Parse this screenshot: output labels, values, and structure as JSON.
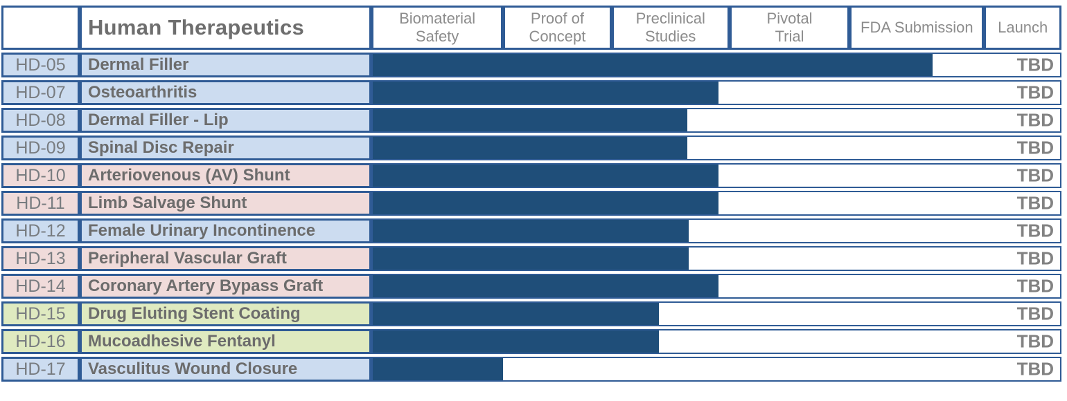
{
  "colors": {
    "bar_fill": "#1F4E79",
    "grid_border": "#2F5B95",
    "row_blue": "#CCDCF0",
    "row_pink": "#F0DBDA",
    "row_green": "#DFEAC0",
    "text_gray": "#7F7F7F"
  },
  "chart_data": {
    "type": "gantt",
    "title": "Human Therapeutics",
    "legend_position": "none",
    "grid": "header column dividers only",
    "launch_column_value_all_rows": "TBD",
    "stages": [
      {
        "label": "Biomaterial Safety",
        "lines": [
          "Biomaterial",
          "Safety"
        ],
        "width_pct": 19.1
      },
      {
        "label": "Proof of Concept",
        "lines": [
          "Proof of",
          "Concept"
        ],
        "width_pct": 15.7
      },
      {
        "label": "Preclinical Studies",
        "lines": [
          "Preclinical",
          "Studies"
        ],
        "width_pct": 17.1
      },
      {
        "label": "Pivotal Trial",
        "lines": [
          "Pivotal",
          "Trial"
        ],
        "width_pct": 17.4
      },
      {
        "label": "FDA Submission",
        "lines": [
          "FDA Submission"
        ],
        "width_pct": 19.5
      },
      {
        "label": "Launch",
        "lines": [
          "Launch"
        ],
        "width_pct": 11.2
      }
    ],
    "rows": [
      {
        "code": "HD-05",
        "name": "Dermal Filler",
        "color": "blue",
        "bar_pct": 81.5,
        "reached": "FDA Submission (~60%)",
        "launch": "TBD"
      },
      {
        "code": "HD-07",
        "name": "Osteoarthritis",
        "color": "blue",
        "bar_pct": 50.3,
        "reached": "Preclinical Studies (~90%)",
        "launch": "TBD"
      },
      {
        "code": "HD-08",
        "name": "Dermal Filler - Lip",
        "color": "blue",
        "bar_pct": 45.8,
        "reached": "Preclinical Studies (~65%)",
        "launch": "TBD"
      },
      {
        "code": "HD-09",
        "name": "Spinal Disc Repair",
        "color": "blue",
        "bar_pct": 45.8,
        "reached": "Preclinical Studies (~65%)",
        "launch": "TBD"
      },
      {
        "code": "HD-10",
        "name": "Arteriovenous (AV) Shunt",
        "color": "pink",
        "bar_pct": 50.3,
        "reached": "Preclinical Studies (~90%)",
        "launch": "TBD"
      },
      {
        "code": "HD-11",
        "name": "Limb Salvage Shunt",
        "color": "pink",
        "bar_pct": 50.3,
        "reached": "Preclinical Studies (~90%)",
        "launch": "TBD"
      },
      {
        "code": "HD-12",
        "name": "Female Urinary Incontinence",
        "color": "blue",
        "bar_pct": 46.0,
        "reached": "Preclinical Studies (~66%)",
        "launch": "TBD"
      },
      {
        "code": "HD-13",
        "name": "Peripheral Vascular Graft",
        "color": "pink",
        "bar_pct": 46.0,
        "reached": "Preclinical Studies (~66%)",
        "launch": "TBD"
      },
      {
        "code": "HD-14",
        "name": "Coronary Artery Bypass Graft",
        "color": "pink",
        "bar_pct": 50.3,
        "reached": "Preclinical Studies (~90%)",
        "launch": "TBD"
      },
      {
        "code": "HD-15",
        "name": "Drug Eluting Stent Coating",
        "color": "green",
        "bar_pct": 41.6,
        "reached": "Preclinical Studies (~40%)",
        "launch": "TBD"
      },
      {
        "code": "HD-16",
        "name": "Mucoadhesive Fentanyl",
        "color": "green",
        "bar_pct": 41.6,
        "reached": "Preclinical Studies (~40%)",
        "launch": "TBD"
      },
      {
        "code": "HD-17",
        "name": "Vasculitus Wound Closure",
        "color": "blue",
        "bar_pct": 19.0,
        "reached": "Biomaterial Safety (complete)",
        "launch": "TBD"
      }
    ]
  }
}
